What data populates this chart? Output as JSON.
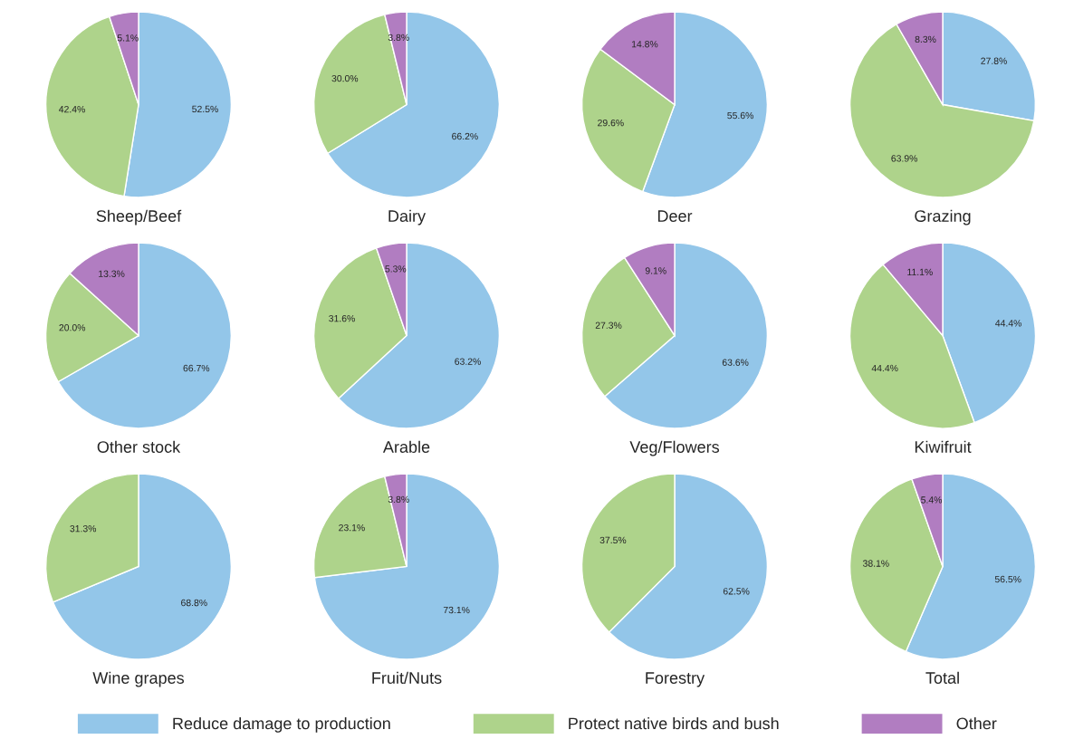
{
  "chart_data": [
    {
      "type": "pie",
      "title": "Sheep/Beef",
      "categories": [
        "Reduce damage to production",
        "Protect native birds and bush",
        "Other"
      ],
      "values": [
        52.5,
        42.4,
        5.1
      ],
      "value_labels": [
        "52.5%",
        "42.4%",
        "5.1%"
      ],
      "colors": [
        "#93c6e9",
        "#aed38b",
        "#b17dc1"
      ],
      "legend": "bottom"
    },
    {
      "type": "pie",
      "title": "Dairy",
      "categories": [
        null,
        null,
        null
      ],
      "values": [
        66.2,
        30.0,
        3.8
      ],
      "value_labels": [
        "66.2%",
        "30.0%",
        "3.8%"
      ],
      "colors": [
        "#93c6e9",
        "#aed38b",
        "#b17dc1"
      ]
    },
    {
      "type": "pie",
      "title": "Deer",
      "categories": [
        null,
        null,
        null
      ],
      "values": [
        55.6,
        29.6,
        14.8
      ],
      "value_labels": [
        "55.6%",
        "29.6%",
        "14.8%"
      ],
      "colors": [
        "#93c6e9",
        "#aed38b",
        "#b17dc1"
      ]
    },
    {
      "type": "pie",
      "title": "Grazing",
      "categories": [
        null,
        null,
        null
      ],
      "values": [
        27.8,
        63.9,
        8.3
      ],
      "value_labels": [
        "27.8%",
        "63.9%",
        "8.3%"
      ],
      "colors": [
        "#93c6e9",
        "#aed38b",
        "#b17dc1"
      ]
    },
    {
      "type": "pie",
      "title": "Other stock",
      "categories": [
        null,
        null,
        null
      ],
      "values": [
        66.7,
        20.0,
        13.3
      ],
      "value_labels": [
        "66.7%",
        "20.0%",
        "13.3%"
      ],
      "colors": [
        "#93c6e9",
        "#aed38b",
        "#b17dc1"
      ]
    },
    {
      "type": "pie",
      "title": "Arable",
      "categories": [
        null,
        null,
        null
      ],
      "values": [
        63.2,
        31.6,
        5.3
      ],
      "value_labels": [
        "63.2%",
        "31.6%",
        "5.3%"
      ],
      "colors": [
        "#93c6e9",
        "#aed38b",
        "#b17dc1"
      ]
    },
    {
      "type": "pie",
      "title": "Veg/Flowers",
      "categories": [
        null,
        null,
        null
      ],
      "values": [
        63.6,
        27.3,
        9.1
      ],
      "value_labels": [
        "63.6%",
        "27.3%",
        "9.1%"
      ],
      "colors": [
        "#93c6e9",
        "#aed38b",
        "#b17dc1"
      ]
    },
    {
      "type": "pie",
      "title": "Kiwifruit",
      "categories": [
        null,
        null,
        null
      ],
      "values": [
        44.4,
        44.4,
        11.1
      ],
      "value_labels": [
        "44.4%",
        "44.4%",
        "11.1%"
      ],
      "colors": [
        "#93c6e9",
        "#aed38b",
        "#b17dc1"
      ]
    },
    {
      "type": "pie",
      "title": "Wine grapes",
      "categories": [
        null,
        null
      ],
      "values": [
        68.8,
        31.3
      ],
      "value_labels": [
        "68.8%",
        "31.3%"
      ],
      "colors": [
        "#93c6e9",
        "#aed38b"
      ]
    },
    {
      "type": "pie",
      "title": "Fruit/Nuts",
      "categories": [
        null,
        null,
        null
      ],
      "values": [
        73.1,
        23.1,
        3.8
      ],
      "value_labels": [
        "73.1%",
        "23.1%",
        "3.8%"
      ],
      "colors": [
        "#93c6e9",
        "#aed38b",
        "#b17dc1"
      ]
    },
    {
      "type": "pie",
      "title": "Forestry",
      "categories": [
        null,
        null
      ],
      "values": [
        62.5,
        37.5
      ],
      "value_labels": [
        "62.5%",
        "37.5%"
      ],
      "colors": [
        "#93c6e9",
        "#aed38b"
      ]
    },
    {
      "type": "pie",
      "title": "Total",
      "categories": [
        null,
        null,
        null
      ],
      "values": [
        56.5,
        38.1,
        5.4
      ],
      "value_labels": [
        "56.5%",
        "38.1%",
        "5.4%"
      ],
      "colors": [
        "#93c6e9",
        "#aed38b",
        "#b17dc1"
      ]
    }
  ]
}
